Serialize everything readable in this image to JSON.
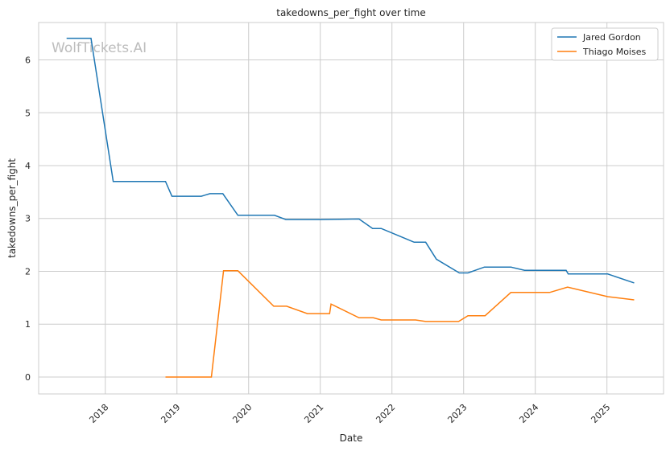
{
  "chart_data": {
    "type": "line",
    "title": "takedowns_per_fight over time",
    "xlabel": "Date",
    "ylabel": "takedowns_per_fight",
    "watermark": "WolfTickets.AI",
    "xlim": [
      2017.07,
      2025.79
    ],
    "ylim": [
      -0.32,
      6.86
    ],
    "xticks": [
      2018,
      2019,
      2020,
      2021,
      2022,
      2023,
      2024,
      2025
    ],
    "xtick_labels": [
      "2018",
      "2019",
      "2020",
      "2021",
      "2022",
      "2023",
      "2024",
      "2025"
    ],
    "yticks": [
      0,
      1,
      2,
      3,
      4,
      5,
      6
    ],
    "ytick_labels": [
      "0",
      "1",
      "2",
      "3",
      "4",
      "5",
      "6"
    ],
    "grid": true,
    "legend_position": "top-right",
    "series": [
      {
        "name": "Jared Gordon",
        "color": "#1f77b4",
        "x": [
          2017.46,
          2017.8,
          2018.11,
          2018.84,
          2018.93,
          2019.34,
          2019.46,
          2019.64,
          2019.85,
          2020.36,
          2020.52,
          2021.0,
          2021.54,
          2021.73,
          2021.85,
          2022.31,
          2022.47,
          2022.62,
          2022.94,
          2023.06,
          2023.29,
          2023.66,
          2023.85,
          2024.43,
          2024.46,
          2025.01,
          2025.38
        ],
        "y": [
          6.41,
          6.41,
          3.7,
          3.7,
          3.42,
          3.42,
          3.47,
          3.47,
          3.06,
          3.06,
          2.98,
          2.98,
          2.99,
          2.81,
          2.81,
          2.55,
          2.55,
          2.23,
          1.97,
          1.97,
          2.08,
          2.08,
          2.02,
          2.02,
          1.95,
          1.95,
          1.78
        ]
      },
      {
        "name": "Thiago Moises",
        "color": "#ff7f0e",
        "x": [
          2018.84,
          2019.48,
          2019.65,
          2019.85,
          2020.35,
          2020.53,
          2020.82,
          2021.13,
          2021.15,
          2021.54,
          2021.74,
          2021.85,
          2022.33,
          2022.47,
          2022.93,
          2023.06,
          2023.3,
          2023.66,
          2024.2,
          2024.45,
          2025.01,
          2025.38
        ],
        "y": [
          0,
          0,
          2.01,
          2.01,
          1.34,
          1.34,
          1.2,
          1.2,
          1.38,
          1.12,
          1.12,
          1.08,
          1.08,
          1.05,
          1.05,
          1.16,
          1.16,
          1.6,
          1.6,
          1.7,
          1.52,
          1.46
        ]
      }
    ]
  }
}
